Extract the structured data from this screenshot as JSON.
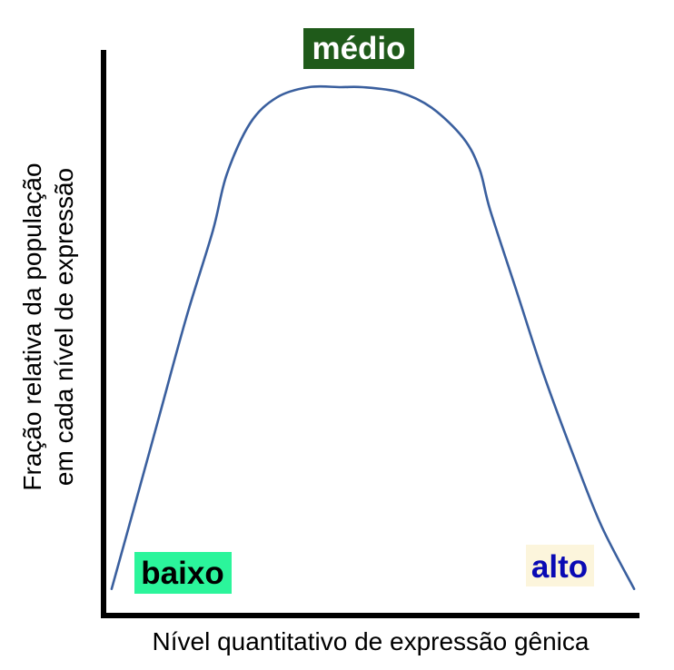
{
  "chart_data": {
    "type": "line",
    "title": "",
    "xlabel": "Nível quantitativo de expressão gênica",
    "ylabel_lines": [
      "Fração relativa da população",
      "em cada nível de expressão"
    ],
    "x_range": [
      0,
      1
    ],
    "y_range": [
      0,
      1
    ],
    "grid": false,
    "legend": "none",
    "series": [
      {
        "color": "#3a5f9e",
        "x": [
          0.01,
          0.05,
          0.1,
          0.15,
          0.2,
          0.226,
          0.27,
          0.32,
          0.38,
          0.44,
          0.48,
          0.55,
          0.61,
          0.67,
          0.7,
          0.72,
          0.77,
          0.82,
          0.88,
          0.93,
          0.99
        ],
        "y": [
          0.02,
          0.17,
          0.36,
          0.55,
          0.72,
          0.83,
          0.93,
          0.98,
          1.0,
          1.0,
          1.0,
          0.99,
          0.96,
          0.9,
          0.84,
          0.76,
          0.6,
          0.44,
          0.27,
          0.14,
          0.02
        ]
      }
    ],
    "annotations": [
      {
        "text": "médio",
        "bg": "#1f5a1a",
        "color": "#ffffff"
      },
      {
        "text": "baixo",
        "bg": "#2bf59b",
        "color": "#000000"
      },
      {
        "text": "alto",
        "bg": "#fcf5dc",
        "color": "#0a0ab4"
      }
    ]
  }
}
